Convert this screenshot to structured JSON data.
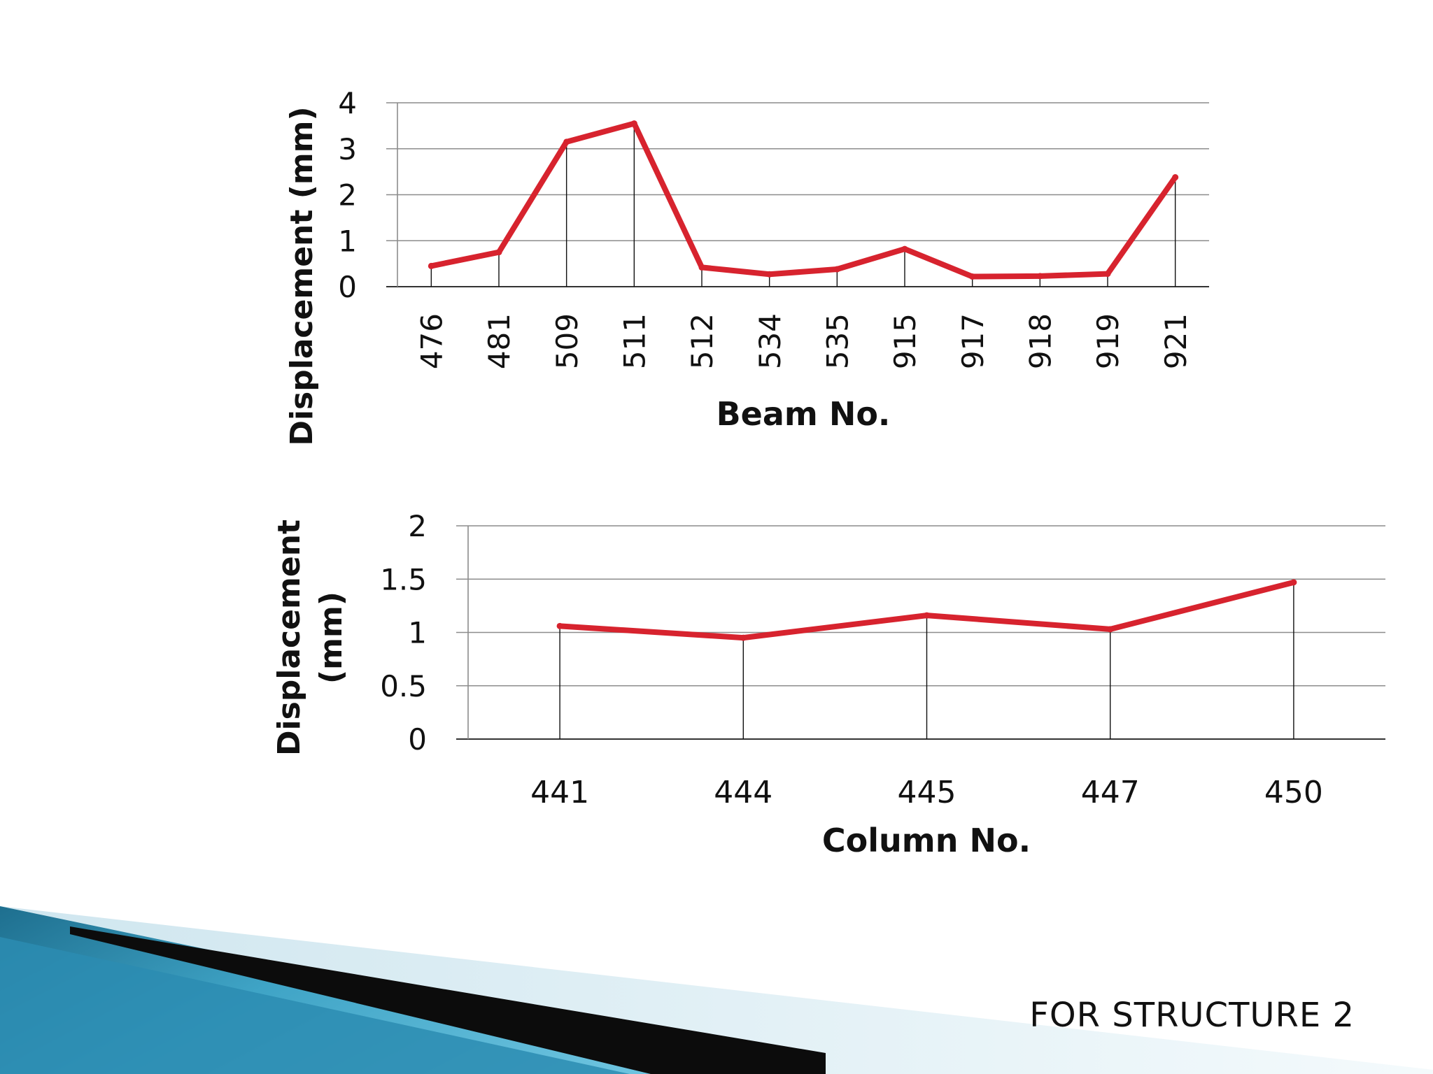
{
  "caption": "FOR STRUCTURE 2",
  "colors": {
    "line": "#d7232e",
    "grid": "#8c8c8c",
    "axis": "#333333",
    "text": "#111111"
  },
  "chart_data": [
    {
      "type": "line",
      "title": "",
      "xlabel": "Beam No.",
      "ylabel": "Displacement (mm)",
      "ylim": [
        0,
        4
      ],
      "yticks": [
        "0",
        "1",
        "2",
        "3",
        "4"
      ],
      "grid": true,
      "legend": "none",
      "categories": [
        "476",
        "481",
        "509",
        "511",
        "512",
        "534",
        "535",
        "915",
        "917",
        "918",
        "919",
        "921"
      ],
      "series": [
        {
          "values": [
            0.45,
            0.75,
            3.15,
            3.55,
            0.42,
            0.27,
            0.38,
            0.82,
            0.22,
            0.23,
            0.28,
            2.38
          ]
        }
      ]
    },
    {
      "type": "line",
      "title": "",
      "xlabel": "Column No.",
      "ylabel": "Displacement (mm)",
      "ylabel_lines": [
        "Displacement",
        "(mm)"
      ],
      "ylim": [
        0,
        2
      ],
      "yticks": [
        "0",
        "0.5",
        "1",
        "1.5",
        "2"
      ],
      "grid": true,
      "legend": "none",
      "categories": [
        "441",
        "444",
        "445",
        "447",
        "450"
      ],
      "series": [
        {
          "values": [
            1.06,
            0.95,
            1.16,
            1.03,
            1.47
          ]
        }
      ]
    }
  ]
}
